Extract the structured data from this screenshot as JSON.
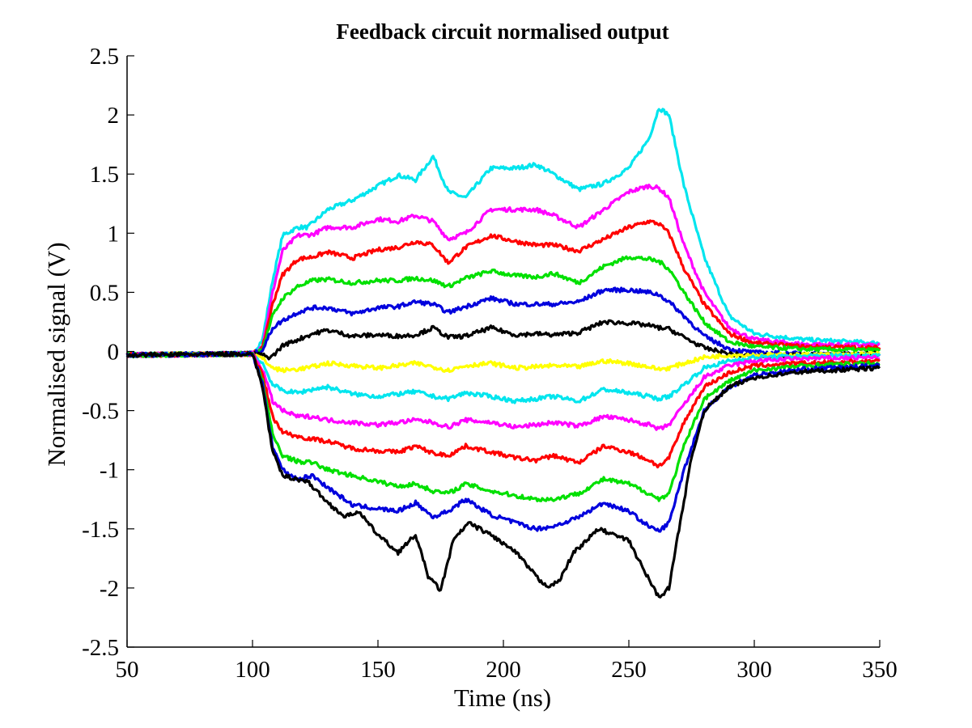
{
  "chart_data": {
    "type": "line",
    "title": "Feedback circuit normalised output",
    "xlabel": "Time (ns)",
    "ylabel": "Normalised signal (V)",
    "xlim": [
      50,
      350
    ],
    "ylim": [
      -2.5,
      2.5
    ],
    "xticks": [
      50,
      100,
      150,
      200,
      250,
      300,
      350
    ],
    "yticks": [
      2.5,
      2,
      1.5,
      1,
      0.5,
      0,
      -0.5,
      -1,
      -1.5,
      -2,
      -2.5
    ],
    "ytick_labels": [
      "2.5",
      "2",
      "1.5",
      "1",
      "0.5",
      "0",
      "-0.5",
      "-1",
      "-1.5",
      "-2",
      "-2.5"
    ],
    "grid": false,
    "legend": "none",
    "series": [
      {
        "color": "#00e5ee",
        "x": [
          50,
          100,
          104,
          108,
          112,
          118,
          122,
          130,
          140,
          150,
          158,
          165,
          172,
          178,
          185,
          195,
          205,
          213,
          220,
          230,
          240,
          250,
          258,
          262,
          266,
          272,
          280,
          290,
          300,
          320,
          350
        ],
        "y": [
          -0.03,
          -0.02,
          0.1,
          0.6,
          0.98,
          1.05,
          1.05,
          1.2,
          1.28,
          1.4,
          1.49,
          1.45,
          1.65,
          1.35,
          1.3,
          1.55,
          1.55,
          1.58,
          1.5,
          1.37,
          1.42,
          1.55,
          1.8,
          2.06,
          2.0,
          1.4,
          0.8,
          0.3,
          0.15,
          0.1,
          0.07
        ]
      },
      {
        "color": "#ff00ff",
        "x": [
          50,
          100,
          104,
          108,
          112,
          118,
          124,
          130,
          140,
          150,
          158,
          165,
          172,
          178,
          185,
          195,
          205,
          213,
          220,
          230,
          240,
          250,
          258,
          262,
          266,
          272,
          280,
          290,
          300,
          320,
          350
        ],
        "y": [
          -0.03,
          -0.02,
          0.05,
          0.5,
          0.85,
          0.98,
          0.99,
          1.05,
          1.05,
          1.12,
          1.1,
          1.15,
          1.1,
          0.95,
          1.0,
          1.2,
          1.2,
          1.2,
          1.15,
          1.05,
          1.2,
          1.35,
          1.4,
          1.38,
          1.3,
          0.9,
          0.5,
          0.2,
          0.1,
          0.06,
          0.05
        ]
      },
      {
        "color": "#ff0000",
        "x": [
          50,
          100,
          104,
          108,
          112,
          118,
          124,
          130,
          140,
          150,
          158,
          165,
          172,
          178,
          185,
          195,
          205,
          213,
          220,
          230,
          240,
          250,
          258,
          262,
          266,
          272,
          280,
          290,
          300,
          320,
          350
        ],
        "y": [
          -0.03,
          -0.02,
          0.03,
          0.4,
          0.65,
          0.78,
          0.8,
          0.84,
          0.79,
          0.86,
          0.88,
          0.93,
          0.9,
          0.75,
          0.88,
          0.98,
          0.93,
          0.9,
          0.9,
          0.85,
          0.95,
          1.05,
          1.1,
          1.08,
          1.0,
          0.7,
          0.4,
          0.15,
          0.07,
          0.04,
          0.03
        ]
      },
      {
        "color": "#00e000",
        "x": [
          50,
          100,
          104,
          108,
          112,
          118,
          124,
          130,
          140,
          150,
          158,
          165,
          172,
          178,
          185,
          195,
          205,
          213,
          220,
          230,
          240,
          250,
          258,
          262,
          266,
          272,
          280,
          290,
          300,
          320,
          350
        ],
        "y": [
          -0.03,
          -0.02,
          0.02,
          0.3,
          0.45,
          0.55,
          0.6,
          0.61,
          0.58,
          0.6,
          0.6,
          0.62,
          0.6,
          0.55,
          0.62,
          0.68,
          0.64,
          0.63,
          0.66,
          0.58,
          0.72,
          0.8,
          0.78,
          0.76,
          0.7,
          0.5,
          0.25,
          0.08,
          0.04,
          0.02,
          0.01
        ]
      },
      {
        "color": "#0000dd",
        "x": [
          50,
          100,
          104,
          108,
          112,
          118,
          124,
          130,
          140,
          150,
          158,
          165,
          172,
          178,
          185,
          195,
          205,
          213,
          220,
          230,
          240,
          250,
          258,
          262,
          266,
          272,
          280,
          290,
          300,
          320,
          350
        ],
        "y": [
          -0.03,
          -0.02,
          0.01,
          0.2,
          0.26,
          0.33,
          0.37,
          0.37,
          0.32,
          0.37,
          0.38,
          0.42,
          0.4,
          0.33,
          0.38,
          0.45,
          0.4,
          0.4,
          0.4,
          0.42,
          0.52,
          0.52,
          0.5,
          0.48,
          0.42,
          0.3,
          0.13,
          0.02,
          -0.01,
          -0.02,
          -0.03
        ]
      },
      {
        "color": "#000000",
        "x": [
          50,
          100,
          104,
          106,
          108,
          112,
          118,
          124,
          130,
          140,
          150,
          158,
          165,
          172,
          178,
          185,
          195,
          205,
          213,
          220,
          230,
          240,
          250,
          258,
          262,
          266,
          272,
          280,
          290,
          300,
          320,
          350
        ],
        "y": [
          -0.03,
          -0.02,
          -0.03,
          -0.05,
          -0.04,
          0.05,
          0.1,
          0.15,
          0.18,
          0.13,
          0.14,
          0.13,
          0.14,
          0.2,
          0.12,
          0.13,
          0.2,
          0.14,
          0.15,
          0.14,
          0.16,
          0.25,
          0.24,
          0.22,
          0.2,
          0.19,
          0.12,
          0.03,
          -0.02,
          -0.04,
          -0.03,
          -0.02
        ]
      },
      {
        "color": "#ffff00",
        "x": [
          50,
          100,
          104,
          108,
          112,
          118,
          124,
          130,
          140,
          150,
          158,
          165,
          172,
          178,
          185,
          195,
          205,
          213,
          220,
          230,
          240,
          250,
          258,
          262,
          266,
          272,
          280,
          290,
          300,
          320,
          350
        ],
        "y": [
          -0.03,
          -0.02,
          -0.06,
          -0.14,
          -0.16,
          -0.15,
          -0.13,
          -0.1,
          -0.12,
          -0.14,
          -0.12,
          -0.1,
          -0.13,
          -0.16,
          -0.12,
          -0.1,
          -0.14,
          -0.13,
          -0.12,
          -0.13,
          -0.08,
          -0.1,
          -0.13,
          -0.15,
          -0.14,
          -0.1,
          -0.05,
          -0.03,
          -0.03,
          -0.03,
          -0.02
        ]
      },
      {
        "color": "#00e5ee",
        "x": [
          50,
          100,
          104,
          108,
          112,
          118,
          124,
          130,
          140,
          150,
          158,
          165,
          172,
          178,
          185,
          195,
          205,
          213,
          220,
          230,
          240,
          250,
          258,
          262,
          266,
          272,
          280,
          290,
          300,
          320,
          350
        ],
        "y": [
          -0.03,
          -0.02,
          -0.1,
          -0.28,
          -0.33,
          -0.35,
          -0.32,
          -0.3,
          -0.36,
          -0.38,
          -0.36,
          -0.34,
          -0.38,
          -0.4,
          -0.35,
          -0.38,
          -0.42,
          -0.4,
          -0.38,
          -0.42,
          -0.32,
          -0.35,
          -0.38,
          -0.4,
          -0.38,
          -0.28,
          -0.14,
          -0.08,
          -0.05,
          -0.04,
          -0.03
        ]
      },
      {
        "color": "#ff00ff",
        "x": [
          50,
          100,
          104,
          108,
          112,
          118,
          124,
          130,
          140,
          150,
          158,
          165,
          172,
          178,
          185,
          195,
          205,
          213,
          220,
          230,
          240,
          250,
          258,
          262,
          266,
          272,
          280,
          290,
          300,
          320,
          350
        ],
        "y": [
          -0.03,
          -0.02,
          -0.15,
          -0.42,
          -0.5,
          -0.55,
          -0.55,
          -0.58,
          -0.6,
          -0.62,
          -0.6,
          -0.58,
          -0.6,
          -0.64,
          -0.58,
          -0.6,
          -0.64,
          -0.62,
          -0.6,
          -0.63,
          -0.55,
          -0.58,
          -0.62,
          -0.66,
          -0.62,
          -0.45,
          -0.22,
          -0.12,
          -0.08,
          -0.06,
          -0.05
        ]
      },
      {
        "color": "#ff0000",
        "x": [
          50,
          100,
          104,
          108,
          112,
          118,
          124,
          130,
          140,
          150,
          158,
          165,
          172,
          178,
          185,
          195,
          205,
          213,
          220,
          230,
          240,
          250,
          258,
          262,
          266,
          272,
          280,
          290,
          300,
          320,
          350
        ],
        "y": [
          -0.03,
          -0.02,
          -0.2,
          -0.55,
          -0.68,
          -0.72,
          -0.74,
          -0.76,
          -0.82,
          -0.84,
          -0.85,
          -0.8,
          -0.86,
          -0.88,
          -0.8,
          -0.85,
          -0.9,
          -0.92,
          -0.88,
          -0.94,
          -0.8,
          -0.85,
          -0.92,
          -0.97,
          -0.9,
          -0.6,
          -0.3,
          -0.18,
          -0.12,
          -0.1,
          -0.08
        ]
      },
      {
        "color": "#00e000",
        "x": [
          50,
          100,
          104,
          108,
          112,
          118,
          124,
          130,
          140,
          150,
          158,
          165,
          172,
          178,
          185,
          195,
          205,
          213,
          220,
          230,
          240,
          250,
          258,
          262,
          266,
          272,
          280,
          290,
          300,
          320,
          350
        ],
        "y": [
          -0.03,
          -0.02,
          -0.25,
          -0.7,
          -0.88,
          -0.93,
          -0.94,
          -1.0,
          -1.05,
          -1.1,
          -1.14,
          -1.12,
          -1.18,
          -1.2,
          -1.12,
          -1.18,
          -1.22,
          -1.25,
          -1.25,
          -1.2,
          -1.08,
          -1.12,
          -1.2,
          -1.25,
          -1.2,
          -0.8,
          -0.4,
          -0.25,
          -0.16,
          -0.12,
          -0.1
        ]
      },
      {
        "color": "#0000dd",
        "x": [
          50,
          100,
          104,
          108,
          112,
          118,
          124,
          130,
          140,
          150,
          158,
          165,
          172,
          178,
          185,
          195,
          205,
          213,
          220,
          230,
          240,
          250,
          258,
          262,
          266,
          272,
          280,
          290,
          300,
          320,
          350
        ],
        "y": [
          -0.03,
          -0.02,
          -0.28,
          -0.8,
          -1.0,
          -1.08,
          -1.05,
          -1.15,
          -1.3,
          -1.33,
          -1.35,
          -1.28,
          -1.4,
          -1.35,
          -1.25,
          -1.38,
          -1.45,
          -1.5,
          -1.48,
          -1.4,
          -1.28,
          -1.35,
          -1.48,
          -1.52,
          -1.45,
          -1.0,
          -0.5,
          -0.3,
          -0.2,
          -0.15,
          -0.12
        ]
      },
      {
        "color": "#000000",
        "x": [
          50,
          100,
          104,
          108,
          112,
          118,
          122,
          130,
          137,
          142,
          150,
          158,
          165,
          170,
          175,
          180,
          186,
          195,
          205,
          215,
          218,
          222,
          228,
          238,
          250,
          256,
          262,
          266,
          270,
          275,
          280,
          290,
          300,
          320,
          350
        ],
        "y": [
          -0.03,
          -0.02,
          -0.3,
          -0.85,
          -1.05,
          -1.08,
          -1.1,
          -1.28,
          -1.4,
          -1.35,
          -1.55,
          -1.7,
          -1.55,
          -1.9,
          -2.02,
          -1.6,
          -1.45,
          -1.55,
          -1.7,
          -1.95,
          -1.98,
          -1.95,
          -1.7,
          -1.5,
          -1.6,
          -1.85,
          -2.08,
          -2.0,
          -1.5,
          -0.9,
          -0.5,
          -0.3,
          -0.22,
          -0.17,
          -0.14
        ]
      }
    ]
  }
}
